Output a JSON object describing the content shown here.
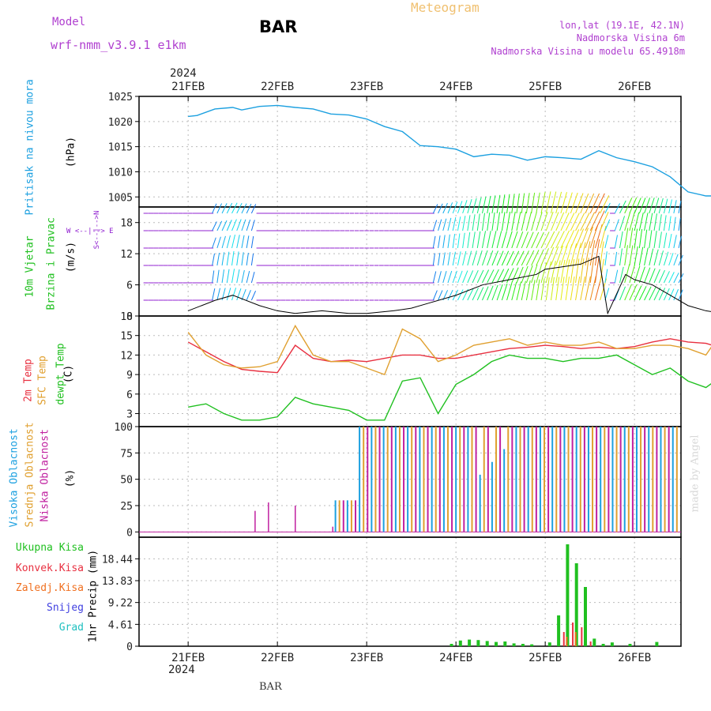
{
  "header": {
    "model_label": "Model",
    "model_name": "wrf-nmm_v3.9.1 e1km",
    "station": "BAR",
    "title": "Meteogram",
    "location": "lon,lat (19.1E, 42.1N)",
    "altitude": "Nadmorska Visina 6m",
    "model_altitude": "Nadmorska Visina u modelu 65.4918m",
    "footer_station": "BAR",
    "watermark": "made by Angel"
  },
  "colors": {
    "pressure": "#1ca0e0",
    "temp2m": "#e83040",
    "sfc": "#e0a030",
    "dewpt": "#20c020",
    "high_cloud": "#1ca0e0",
    "mid_cloud": "#e0a030",
    "low_cloud": "#c020a0",
    "total_precip": "#20c020",
    "conv_precip": "#e83040",
    "frz_precip": "#f07020",
    "snow": "#4040e0",
    "hail": "#20c0c0",
    "wind_calm": "#9020d0"
  },
  "axis": {
    "year_top": "2024",
    "year_bottom": "2024",
    "dates": [
      "21FEB",
      "22FEB",
      "23FEB",
      "24FEB",
      "25FEB",
      "26FEB"
    ]
  },
  "panels": {
    "pressure": {
      "label": "Pritisak na nivou mora",
      "unit": "(hPa)",
      "ticks": [
        "1025",
        "1020",
        "1015",
        "1010",
        "1005"
      ]
    },
    "wind": {
      "label1": "10m Vjetar",
      "label2": "Brzina i Pravac",
      "unit": "(m/s)",
      "ticks": [
        "18",
        "12",
        "6",
        "0"
      ],
      "compass": "W <--|--> E",
      "compass_v": "S<--|-->N"
    },
    "temp": {
      "label1": "2m Temp",
      "label2": "SFC Temp",
      "label3": "dewpt Temp",
      "unit": "(C)",
      "ticks": [
        "18",
        "15",
        "12",
        "9",
        "6",
        "3"
      ]
    },
    "cloud": {
      "label1": "Visoka Oblacnost",
      "label2": "Srednja Oblacnost",
      "label3": "Niska Oblacnost",
      "unit": "(%)",
      "ticks": [
        "100",
        "75",
        "50",
        "25",
        "0"
      ]
    },
    "precip": {
      "label": "1hr Precip (mm)",
      "ticks": [
        "18.44",
        "13.83",
        "9.22",
        "4.61",
        "0"
      ],
      "legend": [
        "Ukupna Kisa",
        "Konvek.Kisa",
        "Zaledj.Kisa",
        "Snijeg",
        "Grad"
      ]
    }
  },
  "chart_data": [
    {
      "type": "line",
      "title": "Pritisak na nivou mora",
      "ylabel": "(hPa)",
      "ylim": [
        1003,
        1025
      ],
      "x_days": [
        0,
        0.1,
        0.3,
        0.5,
        0.6,
        0.8,
        1.0,
        1.2,
        1.4,
        1.6,
        1.8,
        2.0,
        2.2,
        2.4,
        2.6,
        2.8,
        3.0,
        3.2,
        3.4,
        3.6,
        3.8,
        4.0,
        4.2,
        4.4,
        4.6,
        4.8,
        5.0,
        5.2,
        5.4,
        5.6,
        5.8,
        5.9,
        6.0,
        6.1,
        6.2
      ],
      "series": [
        {
          "values": [
            1021.0,
            1021.2,
            1022.5,
            1022.8,
            1022.3,
            1023.0,
            1023.2,
            1022.8,
            1022.5,
            1021.5,
            1021.3,
            1020.5,
            1019.0,
            1018.0,
            1015.2,
            1015.0,
            1014.5,
            1013.0,
            1013.5,
            1013.3,
            1012.3,
            1013.0,
            1012.8,
            1012.5,
            1014.2,
            1012.8,
            1012.0,
            1011.0,
            1009.0,
            1006.0,
            1005.2,
            1005.2,
            1005.0,
            1006.5,
            1008.0
          ]
        }
      ]
    },
    {
      "type": "line",
      "title": "10m Vjetar Brzina i Pravac",
      "ylabel": "(m/s)",
      "ylim": [
        0,
        21
      ],
      "x_days": [
        0,
        0.3,
        0.5,
        0.8,
        1.0,
        1.2,
        1.5,
        1.8,
        2.0,
        2.3,
        2.5,
        2.7,
        3.0,
        3.3,
        3.6,
        3.9,
        4.0,
        4.2,
        4.4,
        4.6,
        4.7,
        4.9,
        5.0,
        5.2,
        5.4,
        5.6,
        5.8,
        6.0,
        6.2
      ],
      "series": [
        {
          "values": [
            1,
            3,
            4,
            2,
            1,
            0.5,
            1,
            0.5,
            0.5,
            1,
            1.5,
            2.5,
            4,
            6,
            7,
            8,
            9,
            9.5,
            10,
            11.5,
            0.5,
            8,
            7,
            6,
            4,
            2,
            1,
            0.5,
            1
          ]
        }
      ]
    },
    {
      "type": "line",
      "title": "2m Temp / SFC Temp / dewpt Temp",
      "ylabel": "(C)",
      "ylim": [
        1,
        18
      ],
      "x_days": [
        0,
        0.2,
        0.4,
        0.6,
        0.8,
        1.0,
        1.2,
        1.4,
        1.6,
        1.8,
        2.0,
        2.2,
        2.4,
        2.6,
        2.8,
        3.0,
        3.2,
        3.4,
        3.6,
        3.8,
        4.0,
        4.2,
        4.4,
        4.6,
        4.8,
        5.0,
        5.2,
        5.4,
        5.6,
        5.8,
        6.0,
        6.2
      ],
      "series": [
        {
          "name": "2m Temp",
          "values": [
            14,
            12.5,
            11,
            9.8,
            9.5,
            9.3,
            13.5,
            11.5,
            11,
            11.2,
            11,
            11.5,
            12,
            12,
            11.5,
            11.5,
            12,
            12.5,
            13,
            13.2,
            13.5,
            13.3,
            13,
            13.2,
            13,
            13.3,
            14,
            14.5,
            14,
            13.8,
            13,
            12.8
          ]
        },
        {
          "name": "SFC Temp",
          "values": [
            15.5,
            12,
            10.5,
            10,
            10.2,
            11,
            16.5,
            12,
            11,
            11,
            10,
            9,
            16,
            14.5,
            11,
            12,
            13.5,
            14,
            14.5,
            13.5,
            14,
            13.5,
            13.5,
            14,
            13,
            13,
            13.5,
            13.5,
            13,
            12,
            16,
            16.5
          ]
        },
        {
          "name": "dewpt Temp",
          "values": [
            4,
            4.5,
            3,
            2,
            2,
            2.5,
            5.5,
            4.5,
            4,
            3.5,
            2,
            2,
            8,
            8.5,
            3,
            7.5,
            9,
            11,
            12,
            11.5,
            11.5,
            11,
            11.5,
            11.5,
            12,
            10.5,
            9,
            10,
            8,
            7,
            9,
            9.5
          ]
        }
      ]
    },
    {
      "type": "bar",
      "title": "Oblacnost",
      "ylabel": "(%)",
      "ylim": [
        0,
        100
      ],
      "series": [
        {
          "name": "Visoka Oblacnost",
          "x_days": [
            2.6,
            3.6,
            4.4,
            5.0
          ],
          "values": [
            0,
            60,
            0,
            0
          ]
        },
        {
          "name": "Srednja Oblacnost",
          "x_days": [
            2.6,
            2.7,
            3.0,
            4.0,
            5.0,
            6.0,
            6.3
          ],
          "values": [
            28,
            100,
            100,
            100,
            100,
            100,
            80
          ]
        },
        {
          "name": "Niska Oblacnost",
          "x_days": [
            1.0,
            1.2,
            1.6,
            2.5,
            2.6,
            3.0,
            4.0
          ],
          "values": [
            20,
            28,
            25,
            5,
            5,
            100,
            100
          ]
        }
      ]
    },
    {
      "type": "bar",
      "title": "1hr Precip",
      "ylabel": "(mm)",
      "ylim": [
        0,
        23
      ],
      "series": [
        {
          "name": "Ukupna Kisa",
          "x_days": [
            3.5,
            3.6,
            3.7,
            3.8,
            3.9,
            4.0,
            4.1,
            4.2,
            4.3,
            4.4,
            4.6,
            4.7,
            4.8,
            4.9,
            5.0,
            5.1,
            5.2,
            5.3,
            5.5,
            5.8
          ],
          "values": [
            0.5,
            1.2,
            1.4,
            1.3,
            1.1,
            0.9,
            1.0,
            0.6,
            0.5,
            0.4,
            0.8,
            6.5,
            21.5,
            17.5,
            12.5,
            1.6,
            0.5,
            0.8,
            0.5,
            0.9
          ]
        },
        {
          "name": "Konvek.Kisa",
          "x_days": [
            4.75,
            4.85,
            4.95,
            5.05
          ],
          "values": [
            3,
            5,
            4,
            1
          ]
        },
        {
          "name": "Zaledj.Kisa",
          "x_days": [
            4.8,
            4.9
          ],
          "values": [
            2,
            3
          ]
        }
      ]
    }
  ]
}
